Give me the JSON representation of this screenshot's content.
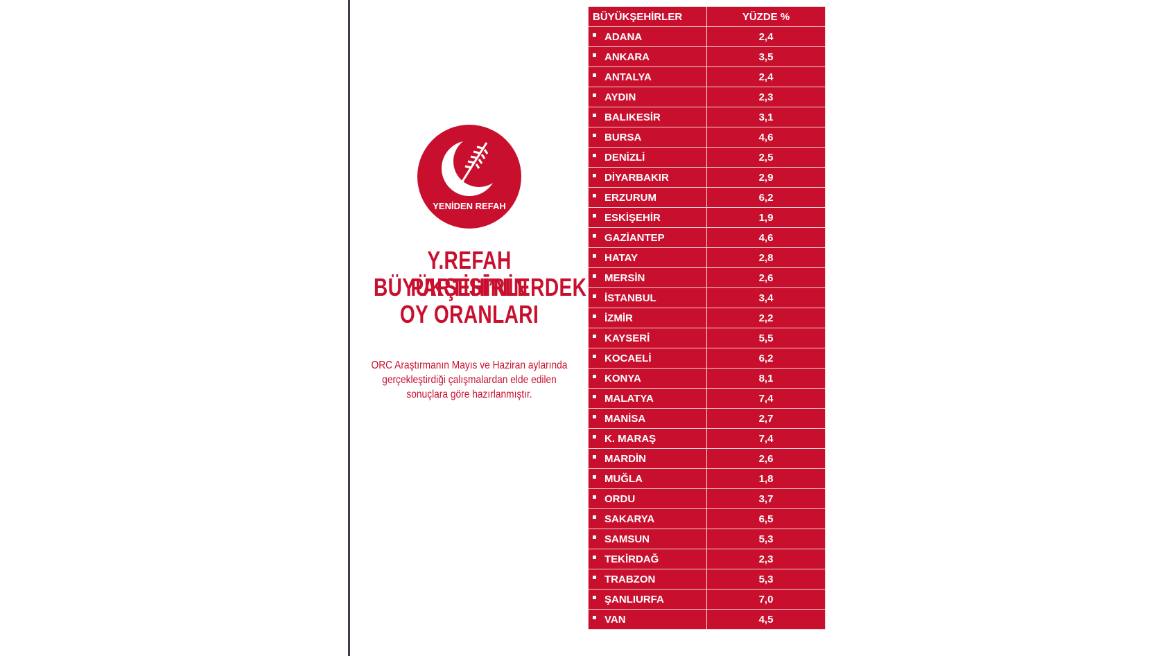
{
  "logo": {
    "text": "YENİDEN REFAH"
  },
  "title": [
    "Y.REFAH PARTİSİ’NİN",
    "BÜYÜKŞEHİRLERDEKİ",
    "OY ORANLARI"
  ],
  "note": [
    "ORC Araştırmanın Mayıs ve Haziran aylarında",
    "gerçekleştirdiği çalışmalardan elde edilen",
    "sonuçlara göre hazırlanmıştır."
  ],
  "table": {
    "header": [
      "BÜYÜKŞEHİRLER",
      "YÜZDE %"
    ],
    "rows": [
      [
        "ADANA",
        "2,4"
      ],
      [
        "ANKARA",
        "3,5"
      ],
      [
        "ANTALYA",
        "2,4"
      ],
      [
        "AYDIN",
        "2,3"
      ],
      [
        "BALIKESİR",
        "3,1"
      ],
      [
        "BURSA",
        "4,6"
      ],
      [
        "DENİZLİ",
        "2,5"
      ],
      [
        "DİYARBAKIR",
        "2,9"
      ],
      [
        "ERZURUM",
        "6,2"
      ],
      [
        "ESKİŞEHİR",
        "1,9"
      ],
      [
        "GAZİANTEP",
        "4,6"
      ],
      [
        "HATAY",
        "2,8"
      ],
      [
        "MERSİN",
        "2,6"
      ],
      [
        "İSTANBUL",
        "3,4"
      ],
      [
        "İZMİR",
        "2,2"
      ],
      [
        "KAYSERİ",
        "5,5"
      ],
      [
        "KOCAELİ",
        "6,2"
      ],
      [
        "KONYA",
        "8,1"
      ],
      [
        "MALATYA",
        "7,4"
      ],
      [
        "MANİSA",
        "2,7"
      ],
      [
        "K. MARAŞ",
        "7,4"
      ],
      [
        "MARDİN",
        "2,6"
      ],
      [
        "MUĞLA",
        "1,8"
      ],
      [
        "ORDU",
        "3,7"
      ],
      [
        "SAKARYA",
        "6,5"
      ],
      [
        "SAMSUN",
        "5,3"
      ],
      [
        "TEKİRDAĞ",
        "2,3"
      ],
      [
        "TRABZON",
        "5,3"
      ],
      [
        "ŞANLIURFA",
        "7,0"
      ],
      [
        "VAN",
        "4,5"
      ]
    ]
  }
}
